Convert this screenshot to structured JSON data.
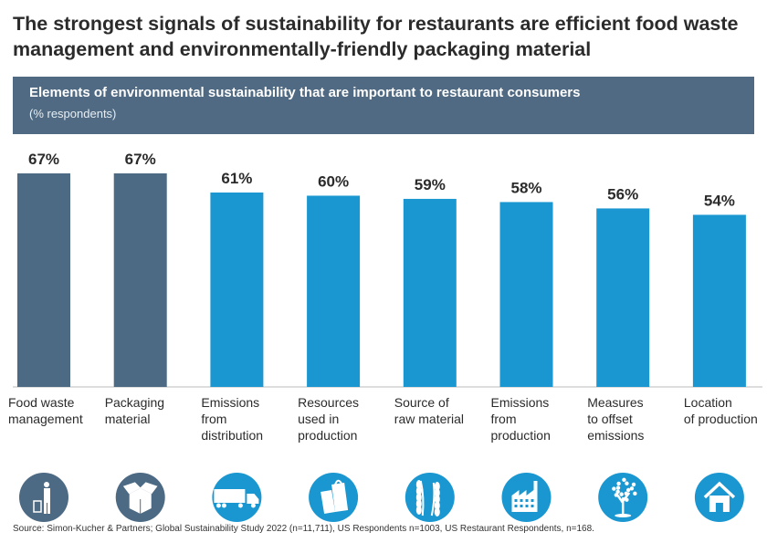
{
  "title": "The strongest signals of sustainability for restaurants are efficient food waste management and environmentally-friendly packaging material",
  "header": {
    "title": "Elements of environmental sustainability that are important to restaurant consumers",
    "subtitle": "(% respondents)"
  },
  "source": "Source: Simon-Kucher & Partners; Global Sustainability Study 2022 (n=11,711), US Respondents n=1003, US Restaurant Respondents, n=168.",
  "colors": {
    "highlight": "#4d6a84",
    "default": "#1a97d0",
    "header": "#4f6a82"
  },
  "chart_data": {
    "type": "bar",
    "title": "Elements of environmental sustainability that are important to restaurant consumers",
    "ylabel": "(% respondents)",
    "ylim": [
      0,
      67
    ],
    "grid": false,
    "categories": [
      [
        "Food waste",
        "management"
      ],
      [
        "Packaging",
        "material"
      ],
      [
        "Emissions",
        "from",
        "distribution"
      ],
      [
        "Resources",
        "used in",
        "production"
      ],
      [
        "Source of",
        "raw material"
      ],
      [
        "Emissions",
        "from",
        "production"
      ],
      [
        "Measures",
        "to offset",
        "emissions"
      ],
      [
        "Location",
        "of production"
      ]
    ],
    "values": [
      67,
      67,
      61,
      60,
      59,
      58,
      56,
      54
    ],
    "data_labels": [
      "67%",
      "67%",
      "61%",
      "60%",
      "59%",
      "58%",
      "56%",
      "54%"
    ],
    "highlighted": [
      true,
      true,
      false,
      false,
      false,
      false,
      false,
      false
    ],
    "icons": [
      "trash-person-icon",
      "box-icon",
      "truck-icon",
      "shopping-bags-icon",
      "wheat-icon",
      "factory-icon",
      "tree-icon",
      "house-icon"
    ]
  }
}
